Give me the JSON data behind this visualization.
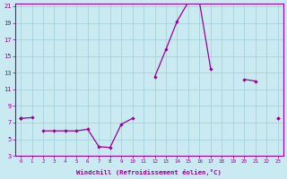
{
  "background_color": "#c8eaf0",
  "grid_color": "#a0ccd8",
  "line_color": "#990099",
  "xlabel": "Windchill (Refroidissement éolien,°C)",
  "hours": [
    0,
    1,
    2,
    3,
    4,
    5,
    6,
    7,
    8,
    9,
    10,
    11,
    12,
    13,
    14,
    15,
    16,
    17,
    18,
    19,
    20,
    21,
    22,
    23
  ],
  "series_peak": [
    7.5,
    7.6,
    null,
    null,
    null,
    null,
    null,
    null,
    null,
    null,
    null,
    null,
    12.5,
    15.8,
    19.2,
    21.5,
    21.5,
    13.5,
    null,
    null,
    null,
    null,
    null,
    null
  ],
  "series_rising": [
    7.5,
    null,
    null,
    null,
    null,
    null,
    null,
    null,
    null,
    null,
    null,
    null,
    null,
    null,
    null,
    null,
    null,
    null,
    null,
    null,
    12.2,
    12.0,
    null,
    7.5
  ],
  "series_flat": [
    7.5,
    null,
    null,
    null,
    null,
    null,
    null,
    null,
    null,
    null,
    null,
    null,
    null,
    null,
    null,
    null,
    null,
    null,
    null,
    null,
    null,
    null,
    null,
    7.5
  ],
  "series_dip": [
    7.5,
    null,
    6.0,
    6.0,
    6.0,
    6.0,
    6.2,
    4.1,
    4.0,
    6.8,
    7.5,
    null,
    null,
    null,
    null,
    null,
    null,
    null,
    null,
    null,
    null,
    null,
    null,
    null
  ],
  "xmin": 0,
  "xmax": 23,
  "ymin": 3,
  "ymax": 21,
  "yticks": [
    3,
    5,
    7,
    9,
    11,
    13,
    15,
    17,
    19,
    21
  ]
}
